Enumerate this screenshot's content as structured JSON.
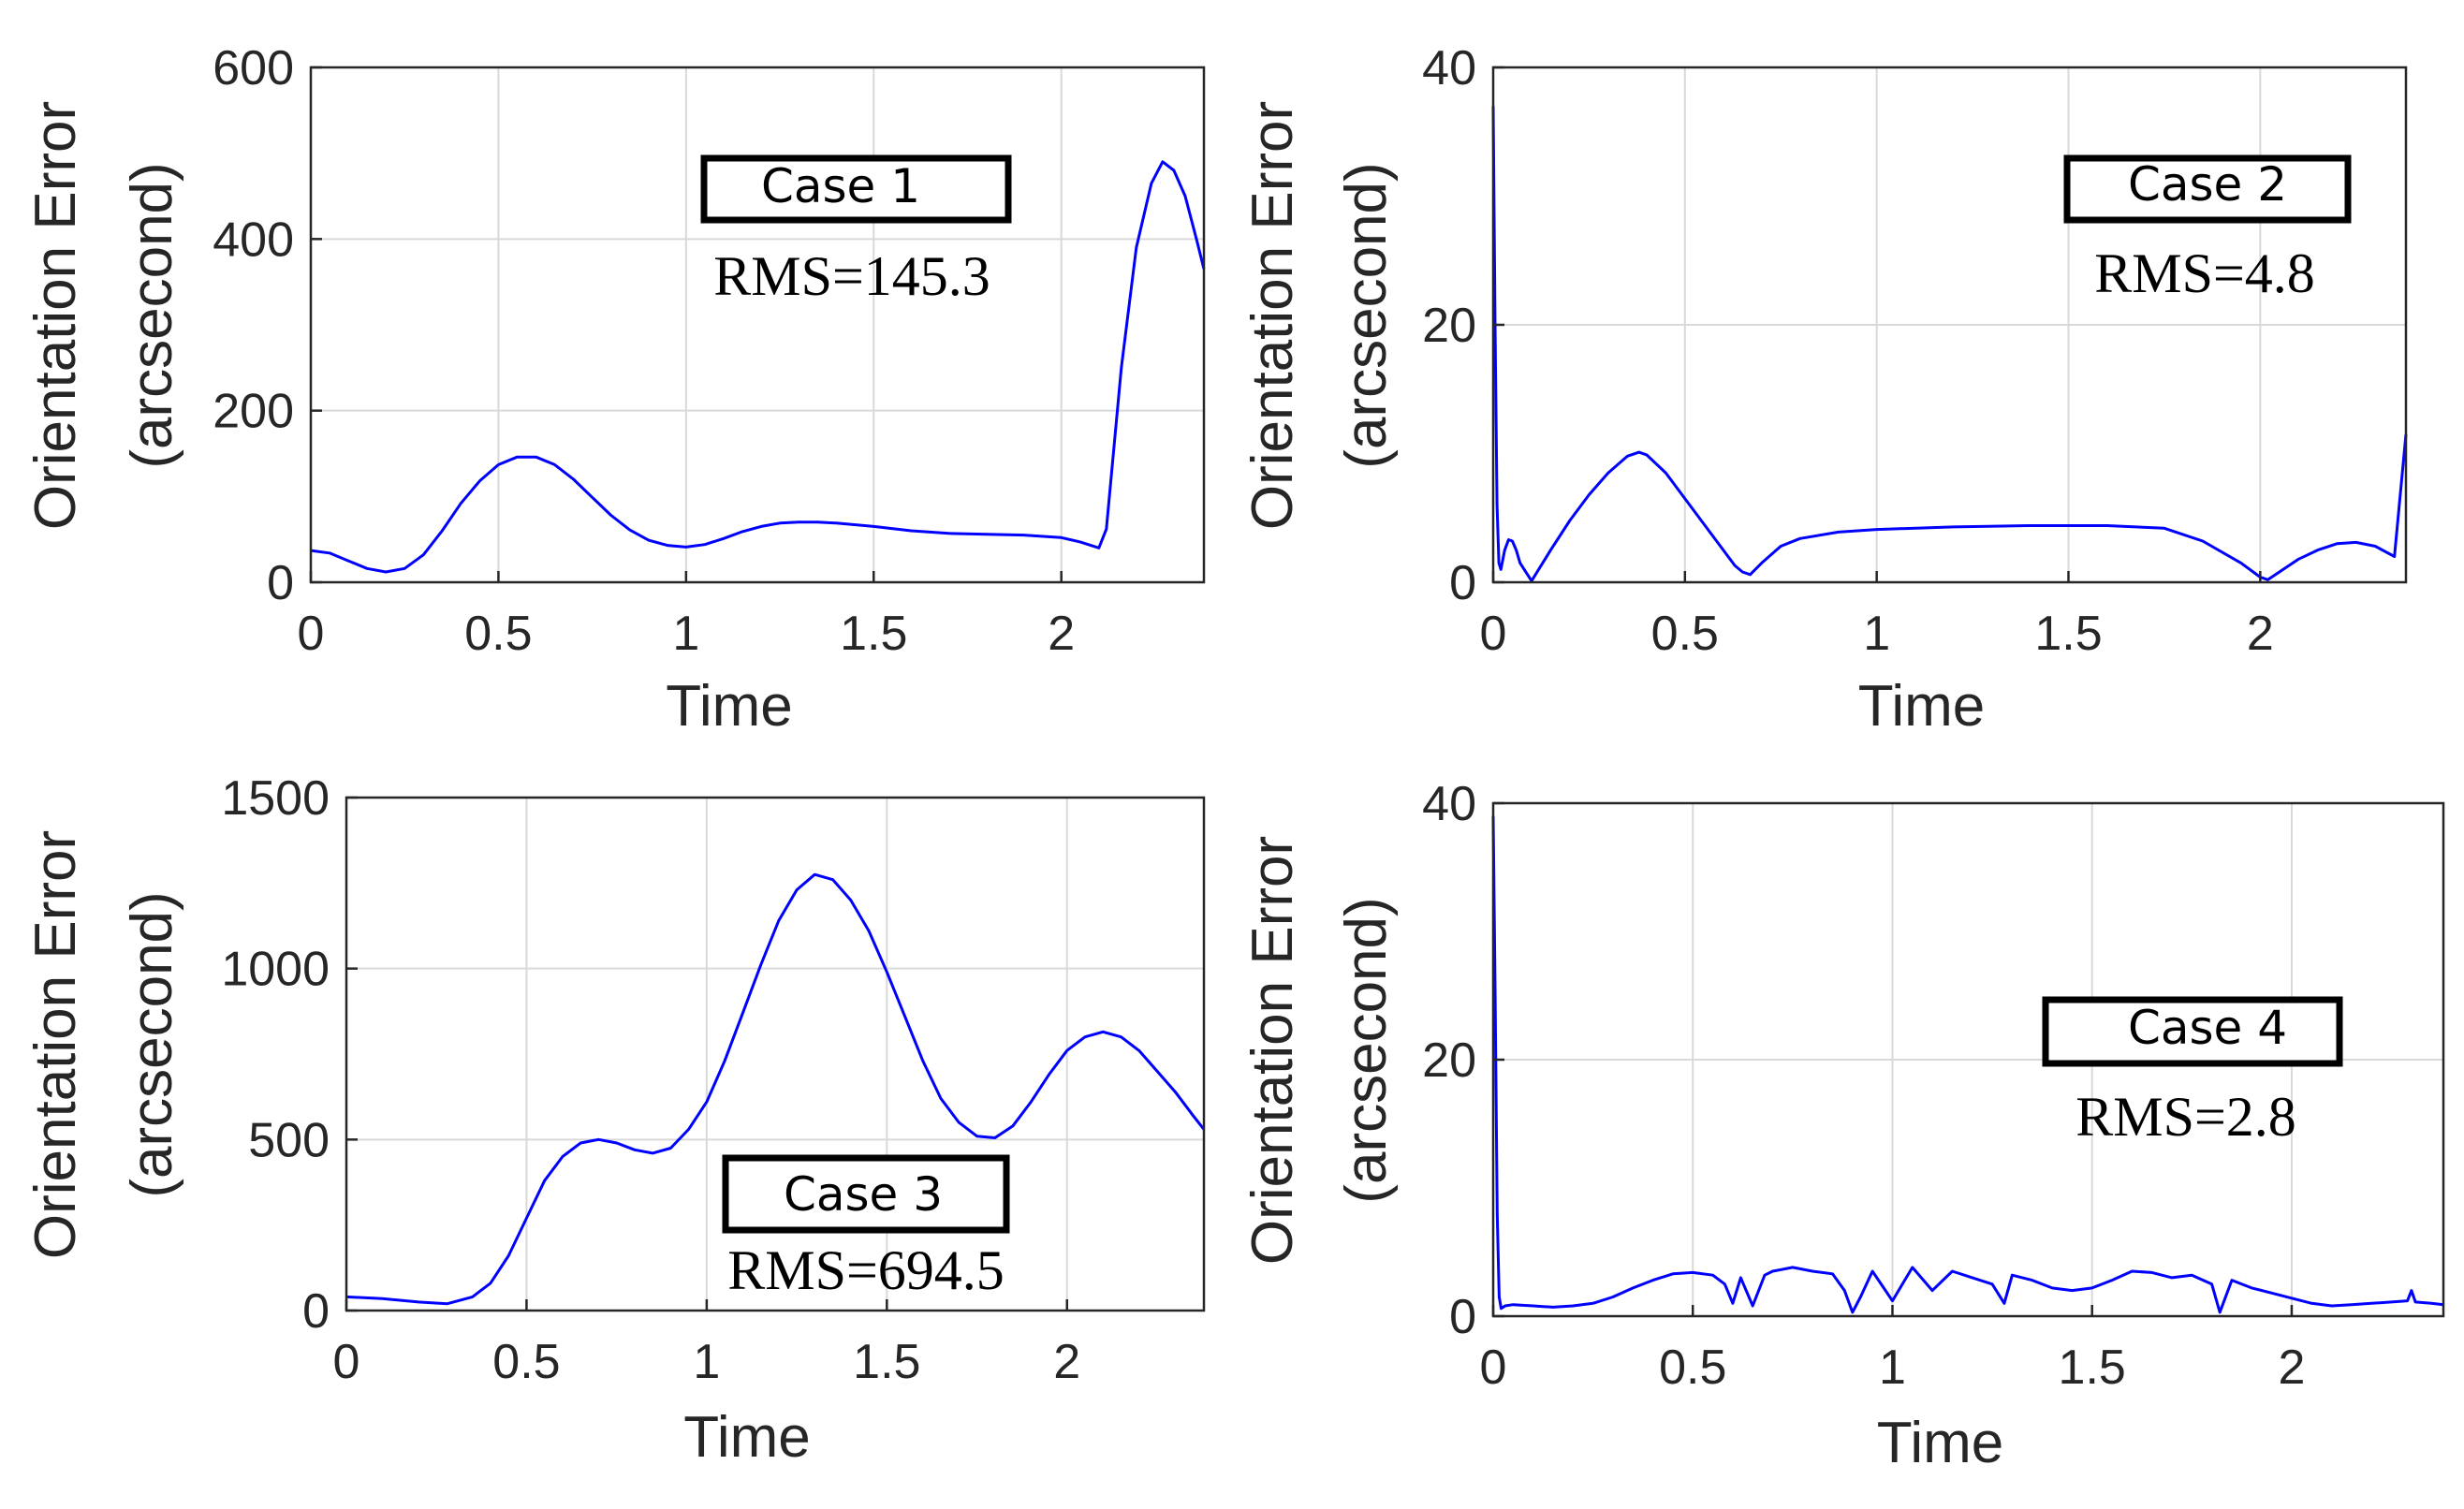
{
  "figure": {
    "line_color": "#0000ff",
    "grid_color": "#d9d9d9",
    "axis_color": "#262626",
    "background": "#ffffff"
  },
  "chart_data": [
    {
      "id": "case1",
      "type": "line",
      "title": "",
      "xlabel": "Time",
      "ylabel": [
        "Orientation Error",
        "(arcsecond)"
      ],
      "xlim": [
        0,
        2.38
      ],
      "ylim": [
        0,
        600
      ],
      "xticks": [
        0,
        0.5,
        1,
        1.5,
        2
      ],
      "yticks": [
        0,
        200,
        400,
        600
      ],
      "xtick_labels": [
        "0",
        "0.5",
        "1",
        "1.5",
        "2"
      ],
      "ytick_labels": [
        "0",
        "200",
        "400",
        "600"
      ],
      "legend_box": "Case 1",
      "annotation": "RMS=145.3",
      "series": [
        {
          "name": "Case 1",
          "color": "#0000ff",
          "x": [
            0,
            0.05,
            0.1,
            0.15,
            0.2,
            0.25,
            0.3,
            0.35,
            0.4,
            0.45,
            0.5,
            0.55,
            0.6,
            0.65,
            0.7,
            0.75,
            0.8,
            0.85,
            0.9,
            0.95,
            1.0,
            1.05,
            1.1,
            1.15,
            1.2,
            1.25,
            1.3,
            1.35,
            1.4,
            1.5,
            1.6,
            1.7,
            1.8,
            1.9,
            2.0,
            2.05,
            2.1,
            2.12,
            2.16,
            2.2,
            2.24,
            2.27,
            2.3,
            2.33,
            2.36,
            2.38
          ],
          "y": [
            37,
            34,
            25,
            16,
            12,
            16,
            32,
            60,
            92,
            118,
            137,
            146,
            146,
            137,
            120,
            99,
            78,
            61,
            49,
            43,
            41,
            44,
            51,
            59,
            65,
            69,
            70,
            70,
            69,
            65,
            60,
            57,
            56,
            55,
            52,
            47,
            40,
            62,
            250,
            390,
            465,
            490,
            480,
            450,
            400,
            365
          ]
        }
      ]
    },
    {
      "id": "case2",
      "type": "line",
      "title": "",
      "xlabel": "Time",
      "ylabel": [
        "Orientation Error",
        "(arcsecond)"
      ],
      "xlim": [
        0,
        2.38
      ],
      "ylim": [
        0,
        40
      ],
      "xticks": [
        0,
        0.5,
        1,
        1.5,
        2
      ],
      "yticks": [
        0,
        20,
        40
      ],
      "xtick_labels": [
        "0",
        "0.5",
        "1",
        "1.5",
        "2"
      ],
      "ytick_labels": [
        "0",
        "20",
        "40"
      ],
      "legend_box": "Case 2",
      "annotation": "RMS=4.8",
      "series": [
        {
          "name": "Case 2",
          "color": "#0000ff",
          "x": [
            0,
            0.005,
            0.01,
            0.015,
            0.02,
            0.03,
            0.04,
            0.05,
            0.06,
            0.07,
            0.1,
            0.15,
            0.2,
            0.25,
            0.3,
            0.35,
            0.38,
            0.4,
            0.45,
            0.5,
            0.55,
            0.6,
            0.63,
            0.65,
            0.67,
            0.7,
            0.75,
            0.8,
            0.9,
            1.0,
            1.2,
            1.4,
            1.6,
            1.75,
            1.85,
            1.95,
            2.0,
            2.02,
            2.05,
            2.1,
            2.15,
            2.2,
            2.25,
            2.3,
            2.35,
            2.38
          ],
          "y": [
            37,
            20,
            6,
            1.5,
            1,
            2.5,
            3.3,
            3.2,
            2.5,
            1.5,
            0.1,
            2.5,
            4.8,
            6.8,
            8.5,
            9.8,
            10.1,
            9.9,
            8.5,
            6.5,
            4.5,
            2.5,
            1.3,
            0.8,
            0.6,
            1.5,
            2.8,
            3.4,
            3.9,
            4.1,
            4.3,
            4.4,
            4.4,
            4.2,
            3.2,
            1.5,
            0.4,
            0.2,
            0.8,
            1.8,
            2.5,
            3.0,
            3.1,
            2.8,
            2.0,
            11.5
          ]
        }
      ]
    },
    {
      "id": "case3",
      "type": "line",
      "title": "",
      "xlabel": "Time",
      "ylabel": [
        "Orientation Error",
        "(arcsecond)"
      ],
      "xlim": [
        0,
        2.38
      ],
      "ylim": [
        0,
        1500
      ],
      "xticks": [
        0,
        0.5,
        1,
        1.5,
        2
      ],
      "yticks": [
        0,
        500,
        1000,
        1500
      ],
      "xtick_labels": [
        "0",
        "0.5",
        "1",
        "1.5",
        "2"
      ],
      "ytick_labels": [
        "0",
        "500",
        "1000",
        "1500"
      ],
      "legend_box": "Case 3",
      "annotation": "RMS=694.5",
      "series": [
        {
          "name": "Case 3",
          "color": "#0000ff",
          "x": [
            0,
            0.1,
            0.2,
            0.28,
            0.35,
            0.4,
            0.45,
            0.5,
            0.55,
            0.6,
            0.65,
            0.7,
            0.75,
            0.8,
            0.85,
            0.9,
            0.95,
            1.0,
            1.05,
            1.1,
            1.15,
            1.2,
            1.25,
            1.3,
            1.35,
            1.4,
            1.45,
            1.5,
            1.55,
            1.6,
            1.65,
            1.7,
            1.75,
            1.8,
            1.85,
            1.9,
            1.95,
            2.0,
            2.05,
            2.1,
            2.15,
            2.2,
            2.25,
            2.3,
            2.35,
            2.38
          ],
          "y": [
            40,
            35,
            25,
            20,
            40,
            80,
            160,
            270,
            380,
            450,
            490,
            500,
            490,
            470,
            460,
            475,
            530,
            610,
            730,
            870,
            1010,
            1140,
            1230,
            1275,
            1260,
            1200,
            1110,
            990,
            860,
            730,
            620,
            550,
            510,
            505,
            540,
            610,
            690,
            760,
            800,
            815,
            800,
            760,
            700,
            640,
            570,
            530
          ]
        }
      ]
    },
    {
      "id": "case4",
      "type": "line",
      "title": "",
      "xlabel": "Time",
      "ylabel": [
        "Orientation Error",
        "(arcsecond)"
      ],
      "xlim": [
        0,
        2.38
      ],
      "ylim": [
        0,
        40
      ],
      "xticks": [
        0,
        0.5,
        1,
        1.5,
        2
      ],
      "yticks": [
        0,
        20,
        40
      ],
      "xtick_labels": [
        "0",
        "0.5",
        "1",
        "1.5",
        "2"
      ],
      "ytick_labels": [
        "0",
        "20",
        "40"
      ],
      "legend_box": "Case 4",
      "annotation": "RMS=2.8",
      "series": [
        {
          "name": "Case 4",
          "color": "#0000ff",
          "x": [
            0,
            0.005,
            0.01,
            0.015,
            0.02,
            0.03,
            0.05,
            0.1,
            0.15,
            0.2,
            0.25,
            0.3,
            0.35,
            0.4,
            0.45,
            0.5,
            0.55,
            0.58,
            0.6,
            0.62,
            0.65,
            0.68,
            0.7,
            0.75,
            0.8,
            0.85,
            0.88,
            0.9,
            0.92,
            0.95,
            1.0,
            1.05,
            1.1,
            1.15,
            1.2,
            1.25,
            1.28,
            1.3,
            1.35,
            1.4,
            1.45,
            1.5,
            1.55,
            1.6,
            1.65,
            1.7,
            1.75,
            1.8,
            1.82,
            1.85,
            1.9,
            1.95,
            2.0,
            2.05,
            2.1,
            2.15,
            2.2,
            2.25,
            2.29,
            2.3,
            2.31,
            2.35,
            2.38
          ],
          "y": [
            39,
            25,
            8,
            1.5,
            0.6,
            0.8,
            0.9,
            0.8,
            0.7,
            0.8,
            1.0,
            1.5,
            2.2,
            2.8,
            3.3,
            3.4,
            3.2,
            2.5,
            1.0,
            3.0,
            0.8,
            3.2,
            3.5,
            3.8,
            3.5,
            3.3,
            2.0,
            0.3,
            1.5,
            3.5,
            1.2,
            3.8,
            2.0,
            3.5,
            3.0,
            2.5,
            1.0,
            3.2,
            2.8,
            2.2,
            2.0,
            2.2,
            2.8,
            3.5,
            3.4,
            3.0,
            3.2,
            2.5,
            0.3,
            2.8,
            2.2,
            1.8,
            1.4,
            1.0,
            0.8,
            0.9,
            1.0,
            1.1,
            1.2,
            2.0,
            1.1,
            1.0,
            0.9
          ]
        }
      ]
    }
  ]
}
